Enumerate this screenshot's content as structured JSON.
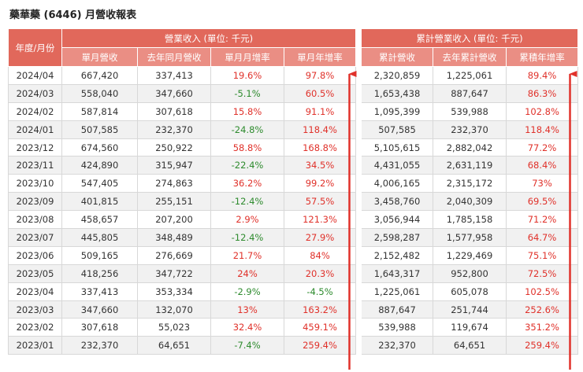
{
  "title": "藥華藥 (6446) 月營收報表",
  "header": {
    "year_month": "年度/月份",
    "group_monthly": "營業收入 (單位: 千元)",
    "group_cumulative": "累計營業收入 (單位: 千元)",
    "cols_monthly": [
      "單月營收",
      "去年同月營收",
      "單月月增率",
      "單月年增率"
    ],
    "cols_cumulative": [
      "累計營收",
      "去年累計營收",
      "累積年增率"
    ]
  },
  "colors": {
    "header_bg": "#e1685b",
    "subheader_bg": "#ea8e84",
    "positive": "#e0312a",
    "negative": "#2e8b2e",
    "arrow": "#e0312a"
  },
  "rows": [
    {
      "ym": "2024/04",
      "rev": "667,420",
      "rev_ly": "337,413",
      "mom": "19.6%",
      "yoy": "97.8%",
      "cum": "2,320,859",
      "cum_ly": "1,225,061",
      "cum_yoy": "89.4%"
    },
    {
      "ym": "2024/03",
      "rev": "558,040",
      "rev_ly": "347,660",
      "mom": "-5.1%",
      "yoy": "60.5%",
      "cum": "1,653,438",
      "cum_ly": "887,647",
      "cum_yoy": "86.3%"
    },
    {
      "ym": "2024/02",
      "rev": "587,814",
      "rev_ly": "307,618",
      "mom": "15.8%",
      "yoy": "91.1%",
      "cum": "1,095,399",
      "cum_ly": "539,988",
      "cum_yoy": "102.8%"
    },
    {
      "ym": "2024/01",
      "rev": "507,585",
      "rev_ly": "232,370",
      "mom": "-24.8%",
      "yoy": "118.4%",
      "cum": "507,585",
      "cum_ly": "232,370",
      "cum_yoy": "118.4%"
    },
    {
      "ym": "2023/12",
      "rev": "674,560",
      "rev_ly": "250,922",
      "mom": "58.8%",
      "yoy": "168.8%",
      "cum": "5,105,615",
      "cum_ly": "2,882,042",
      "cum_yoy": "77.2%"
    },
    {
      "ym": "2023/11",
      "rev": "424,890",
      "rev_ly": "315,947",
      "mom": "-22.4%",
      "yoy": "34.5%",
      "cum": "4,431,055",
      "cum_ly": "2,631,119",
      "cum_yoy": "68.4%"
    },
    {
      "ym": "2023/10",
      "rev": "547,405",
      "rev_ly": "274,863",
      "mom": "36.2%",
      "yoy": "99.2%",
      "cum": "4,006,165",
      "cum_ly": "2,315,172",
      "cum_yoy": "73%"
    },
    {
      "ym": "2023/09",
      "rev": "401,815",
      "rev_ly": "255,151",
      "mom": "-12.4%",
      "yoy": "57.5%",
      "cum": "3,458,760",
      "cum_ly": "2,040,309",
      "cum_yoy": "69.5%"
    },
    {
      "ym": "2023/08",
      "rev": "458,657",
      "rev_ly": "207,200",
      "mom": "2.9%",
      "yoy": "121.3%",
      "cum": "3,056,944",
      "cum_ly": "1,785,158",
      "cum_yoy": "71.2%"
    },
    {
      "ym": "2023/07",
      "rev": "445,805",
      "rev_ly": "348,489",
      "mom": "-12.4%",
      "yoy": "27.9%",
      "cum": "2,598,287",
      "cum_ly": "1,577,958",
      "cum_yoy": "64.7%"
    },
    {
      "ym": "2023/06",
      "rev": "509,165",
      "rev_ly": "276,669",
      "mom": "21.7%",
      "yoy": "84%",
      "cum": "2,152,482",
      "cum_ly": "1,229,469",
      "cum_yoy": "75.1%"
    },
    {
      "ym": "2023/05",
      "rev": "418,256",
      "rev_ly": "347,722",
      "mom": "24%",
      "yoy": "20.3%",
      "cum": "1,643,317",
      "cum_ly": "952,800",
      "cum_yoy": "72.5%"
    },
    {
      "ym": "2023/04",
      "rev": "337,413",
      "rev_ly": "353,334",
      "mom": "-2.9%",
      "yoy": "-4.5%",
      "cum": "1,225,061",
      "cum_ly": "605,078",
      "cum_yoy": "102.5%"
    },
    {
      "ym": "2023/03",
      "rev": "347,660",
      "rev_ly": "132,070",
      "mom": "13%",
      "yoy": "163.2%",
      "cum": "887,647",
      "cum_ly": "251,744",
      "cum_yoy": "252.6%"
    },
    {
      "ym": "2023/02",
      "rev": "307,618",
      "rev_ly": "55,023",
      "mom": "32.4%",
      "yoy": "459.1%",
      "cum": "539,988",
      "cum_ly": "119,674",
      "cum_yoy": "351.2%"
    },
    {
      "ym": "2023/01",
      "rev": "232,370",
      "rev_ly": "64,651",
      "mom": "-7.4%",
      "yoy": "259.4%",
      "cum": "232,370",
      "cum_ly": "64,651",
      "cum_yoy": "259.4%"
    }
  ]
}
